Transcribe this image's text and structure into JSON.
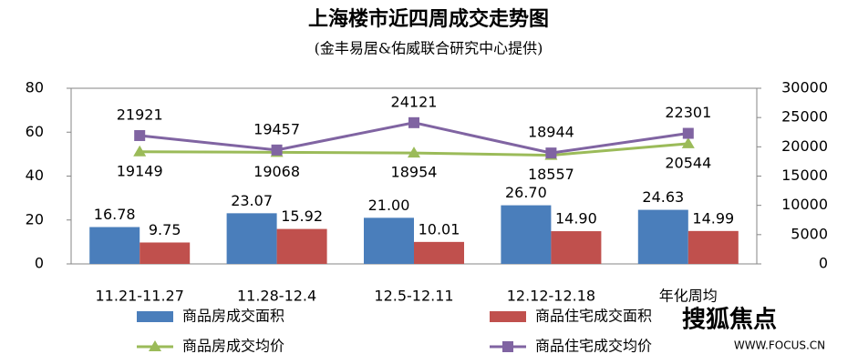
{
  "chart_data": {
    "type": "bar",
    "title": "上海楼市近四周成交走势图",
    "subtitle": "(金丰易居&佑威联合研究中心提供)",
    "categories": [
      "11.21-11.27",
      "11.28-12.4",
      "12.5-12.11",
      "12.12-12.18",
      "年化周均"
    ],
    "series": [
      {
        "name": "商品房成交面积",
        "type": "bar",
        "color": "#4a7ebb",
        "values": [
          16.78,
          23.07,
          21.0,
          26.7,
          24.63
        ],
        "value_labels": [
          "16.78",
          "23.07",
          "21.00",
          "26.70",
          "24.63"
        ]
      },
      {
        "name": "商品住宅成交面积",
        "type": "bar",
        "color": "#c0504d",
        "values": [
          9.75,
          15.92,
          10.01,
          14.9,
          14.99
        ],
        "value_labels": [
          "9.75",
          "15.92",
          "10.01",
          "14.90",
          "14.99"
        ]
      },
      {
        "name": "商品房成交均价",
        "type": "line",
        "axis": "y2",
        "color": "#9bbb59",
        "values": [
          19149,
          19068,
          18954,
          18557,
          20544
        ]
      },
      {
        "name": "商品住宅成交均价",
        "type": "line",
        "axis": "y2",
        "color": "#8064a2",
        "values": [
          21921,
          19457,
          24121,
          18944,
          22301
        ]
      }
    ],
    "ylim": [
      0,
      80
    ],
    "yticks": [
      0,
      20,
      40,
      60,
      80
    ],
    "y2lim": [
      0,
      30000
    ],
    "y2ticks": [
      0,
      5000,
      10000,
      15000,
      20000,
      25000,
      30000
    ],
    "grid": false,
    "watermark": {
      "brand": "搜狐焦点",
      "url": "WWW.FOCUS.CN"
    }
  }
}
